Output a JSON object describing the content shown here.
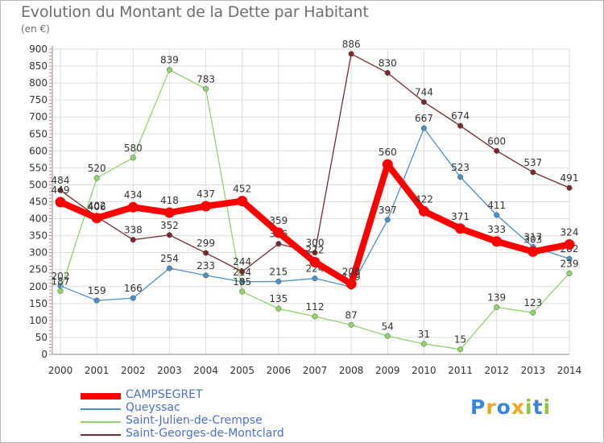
{
  "header": {
    "title": "Evolution du Montant de la Dette par Habitant",
    "unit": "(en €)"
  },
  "chart_data": {
    "type": "line",
    "title": "Evolution du Montant de la Dette par Habitant",
    "ylabel": "(en €)",
    "ylim": [
      0,
      900
    ],
    "yticks": [
      0,
      50,
      100,
      150,
      200,
      250,
      300,
      350,
      400,
      450,
      500,
      550,
      600,
      650,
      700,
      750,
      800,
      850,
      900
    ],
    "grid": true,
    "legend_position": "bottom-left",
    "categories": [
      "2000",
      "2001",
      "2002",
      "2003",
      "2004",
      "2005",
      "2006",
      "2007",
      "2008",
      "2009",
      "2010",
      "2011",
      "2012",
      "2013",
      "2014"
    ],
    "series": [
      {
        "name": "CAMPSEGRET",
        "color": "#ff0000",
        "values": [
          449,
          402,
          434,
          418,
          437,
          452,
          359,
          272,
          208,
          560,
          422,
          371,
          333,
          303,
          324
        ]
      },
      {
        "name": "Queyssac",
        "color": "#4a90c8",
        "values": [
          202,
          159,
          166,
          254,
          233,
          214,
          215,
          224,
          199,
          397,
          667,
          523,
          411,
          317,
          282
        ]
      },
      {
        "name": "Saint-Julien-de-Crempse",
        "color": "#8fd46a",
        "values": [
          187,
          520,
          580,
          839,
          783,
          185,
          135,
          112,
          87,
          54,
          31,
          15,
          139,
          123,
          239
        ]
      },
      {
        "name": "Saint-Georges-de-Montclard",
        "color": "#7a2a2a",
        "values": [
          484,
          406,
          338,
          352,
          299,
          244,
          326,
          300,
          886,
          830,
          744,
          674,
          600,
          537,
          491
        ]
      }
    ]
  },
  "logo": {
    "letters": [
      "P",
      "r",
      "o",
      "x",
      "i",
      "t",
      "i"
    ],
    "colors": [
      "#3a86d6",
      "#f2a81d",
      "#3a86d6",
      "#f2a81d",
      "#8cc63f",
      "#3a86d6",
      "#8cc63f"
    ]
  }
}
